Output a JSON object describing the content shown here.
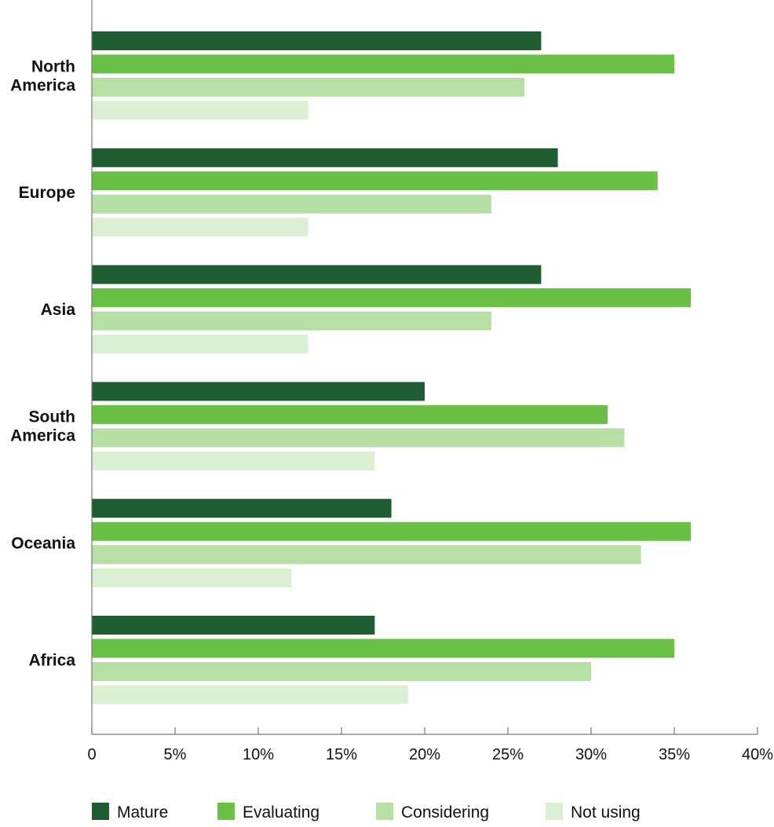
{
  "chart_data": {
    "type": "bar",
    "orientation": "horizontal",
    "title": "",
    "xlabel": "",
    "ylabel": "",
    "xlim": [
      0,
      40
    ],
    "x_ticks": [
      0,
      5,
      10,
      15,
      20,
      25,
      30,
      35,
      40
    ],
    "x_tick_labels": [
      "0",
      "5%",
      "10%",
      "15%",
      "20%",
      "25%",
      "30%",
      "35%",
      "40%"
    ],
    "grid": false,
    "legend_position": "bottom",
    "categories": [
      [
        "North",
        "America"
      ],
      [
        "Europe"
      ],
      [
        "Asia"
      ],
      [
        "South",
        "America"
      ],
      [
        "Oceania"
      ],
      [
        "Africa"
      ]
    ],
    "series": [
      {
        "name": "Mature",
        "color": "#1e5c32",
        "values": [
          27,
          28,
          27,
          20,
          18,
          17
        ]
      },
      {
        "name": "Evaluating",
        "color": "#6abf45",
        "values": [
          35,
          34,
          36,
          31,
          36,
          35
        ]
      },
      {
        "name": "Considering",
        "color": "#b6dea5",
        "values": [
          26,
          24,
          24,
          32,
          33,
          30
        ]
      },
      {
        "name": "Not using",
        "color": "#dbefd3",
        "values": [
          13,
          13,
          13,
          17,
          12,
          19
        ]
      }
    ]
  }
}
